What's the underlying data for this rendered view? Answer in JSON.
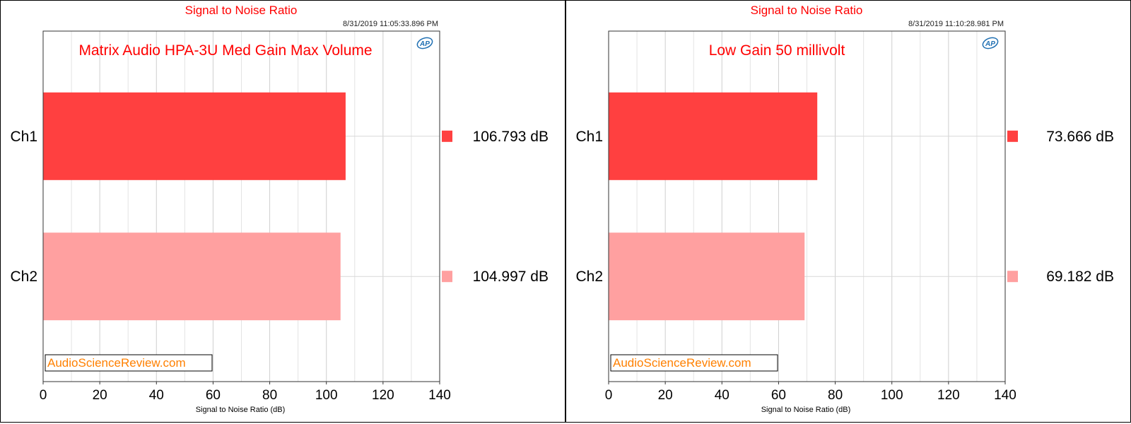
{
  "chart_data": [
    {
      "type": "bar",
      "orientation": "horizontal",
      "title": "Signal to Noise Ratio",
      "timestamp": "8/31/2019 11:05:33.896 PM",
      "annotation": "Matrix Audio HPA-3U Med Gain Max Volume",
      "watermark": "AudioScienceReview.com",
      "logo": "AP",
      "xlabel": "Signal to Noise Ratio (dB)",
      "xlim": [
        0,
        140
      ],
      "xticks": [
        0,
        20,
        40,
        60,
        80,
        100,
        120,
        140
      ],
      "grid": true,
      "categories": [
        "Ch1",
        "Ch2"
      ],
      "values": [
        106.793,
        104.997
      ],
      "value_labels": [
        "106.793 dB",
        "104.997 dB"
      ],
      "colors": [
        "#ff4040",
        "#ffa0a0"
      ],
      "legend_placement": "right"
    },
    {
      "type": "bar",
      "orientation": "horizontal",
      "title": "Signal to Noise Ratio",
      "timestamp": "8/31/2019 11:10:28.981 PM",
      "annotation": "Low Gain 50 millivolt",
      "watermark": "AudioScienceReview.com",
      "logo": "AP",
      "xlabel": "Signal to Noise Ratio (dB)",
      "xlim": [
        0,
        140
      ],
      "xticks": [
        0,
        20,
        40,
        60,
        80,
        100,
        120,
        140
      ],
      "grid": true,
      "categories": [
        "Ch1",
        "Ch2"
      ],
      "values": [
        73.666,
        69.182
      ],
      "value_labels": [
        "73.666 dB",
        "69.182 dB"
      ],
      "colors": [
        "#ff4040",
        "#ffa0a0"
      ],
      "legend_placement": "right"
    }
  ]
}
